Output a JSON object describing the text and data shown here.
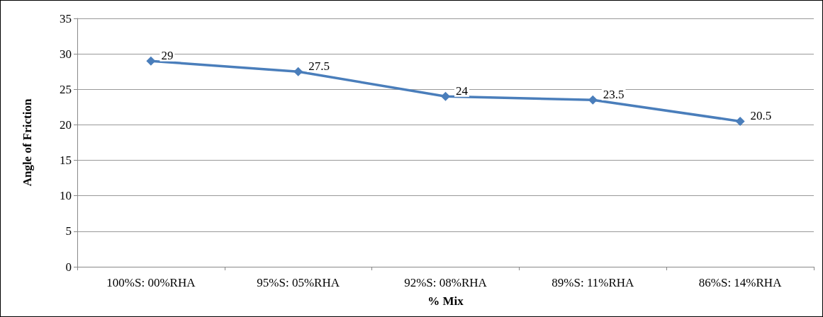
{
  "chart_data": {
    "type": "line",
    "xlabel": "% Mix",
    "ylabel": "Angle of Friction",
    "categories": [
      "100%S: 00%RHA",
      "95%S: 05%RHA",
      "92%S: 08%RHA",
      "89%S: 11%RHA",
      "86%S: 14%RHA"
    ],
    "series": [
      {
        "color": "#4a7ebb",
        "values": [
          29,
          27.5,
          24,
          23.5,
          20.5
        ]
      }
    ],
    "ylim": [
      0,
      35
    ],
    "yticks": [
      0,
      5,
      10,
      15,
      20,
      25,
      30,
      35
    ],
    "grid": "y",
    "marker": "diamond",
    "line_style": "solid",
    "data_labels": true
  }
}
